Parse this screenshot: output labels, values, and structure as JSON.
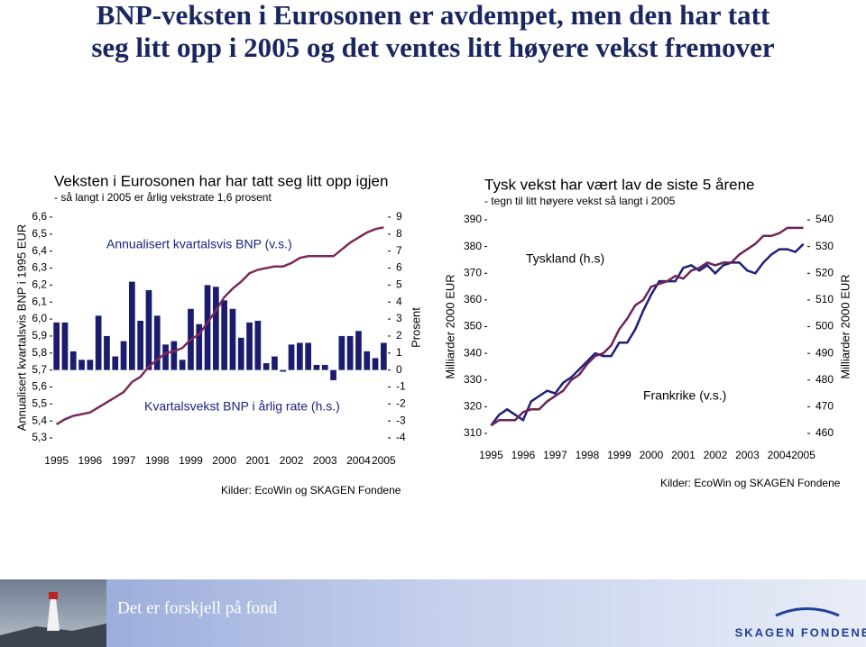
{
  "title": [
    "BNP-veksten i Eurosonen er avdempet, men den har tatt",
    "seg litt opp i 2005 og det ventes litt høyere vekst fremover"
  ],
  "chart_data": [
    {
      "type": "combo",
      "title": "Veksten i Eurosonen har har tatt seg litt opp igjen",
      "subtitle": "- så langt i 2005 er årlig vekstrate 1,6 prosent",
      "ylabel": "Annualisert kvartalsvis BNP i 1995 EUR",
      "y2label": "Prosent",
      "source": "Kilder: EcoWin og SKAGEN Fondene",
      "categories": [
        "1995",
        null,
        null,
        null,
        "1996",
        null,
        null,
        null,
        "1997",
        null,
        null,
        null,
        "1998",
        null,
        null,
        null,
        "1999",
        null,
        null,
        null,
        "2000",
        null,
        null,
        null,
        "2001",
        null,
        null,
        null,
        "2002",
        null,
        null,
        null,
        "2003",
        null,
        null,
        null,
        "2004",
        null,
        null,
        "2005"
      ],
      "series": [
        {
          "name": "Annualisert kvartalsvis BNP (v.s.)",
          "type": "line",
          "axis": "y",
          "color": "#7b2a5a",
          "values": [
            5.38,
            5.41,
            5.43,
            5.44,
            5.45,
            5.48,
            5.51,
            5.54,
            5.57,
            5.63,
            5.66,
            5.72,
            5.76,
            5.8,
            5.81,
            5.83,
            5.88,
            5.91,
            5.98,
            6.05,
            6.13,
            6.18,
            6.22,
            6.27,
            6.29,
            6.3,
            6.31,
            6.31,
            6.33,
            6.36,
            6.37,
            6.37,
            6.37,
            6.37,
            6.41,
            6.45,
            6.48,
            6.51,
            6.53,
            6.54
          ]
        },
        {
          "name": "Kvartalsvekst BNP i årlig rate (h.s.)",
          "type": "bar",
          "axis": "y2",
          "color": "#1c1c6e",
          "values": [
            2.8,
            2.8,
            1.1,
            0.6,
            0.6,
            3.2,
            2.0,
            0.8,
            1.7,
            5.2,
            2.9,
            4.7,
            3.2,
            1.5,
            1.7,
            0.6,
            3.6,
            2.7,
            5.0,
            4.9,
            4.1,
            3.6,
            1.9,
            2.8,
            2.9,
            0.4,
            0.8,
            -0.1,
            1.5,
            1.6,
            1.6,
            0.3,
            0.3,
            -0.6,
            2.0,
            2.0,
            2.3,
            1.1,
            0.7,
            1.6
          ]
        }
      ],
      "ylim": [
        5.3,
        6.6
      ],
      "yticks": [
        {
          "value": 5.3,
          "label": "5,3"
        },
        {
          "value": 5.4,
          "label": "5,4"
        },
        {
          "value": 5.5,
          "label": "5,5"
        },
        {
          "value": 5.6,
          "label": "5,6"
        },
        {
          "value": 5.7,
          "label": "5,7"
        },
        {
          "value": 5.8,
          "label": "5,8"
        },
        {
          "value": 5.9,
          "label": "5,9"
        },
        {
          "value": 6.0,
          "label": "6,0"
        },
        {
          "value": 6.1,
          "label": "6,1"
        },
        {
          "value": 6.2,
          "label": "6,2"
        },
        {
          "value": 6.3,
          "label": "6,3"
        },
        {
          "value": 6.4,
          "label": "6,4"
        },
        {
          "value": 6.5,
          "label": "6,5"
        },
        {
          "value": 6.6,
          "label": "6,6"
        }
      ],
      "y2lim": [
        -4,
        9
      ],
      "y2ticks": [
        -4,
        -3,
        -2,
        -1,
        0,
        1,
        2,
        3,
        4,
        5,
        6,
        7,
        8,
        9
      ]
    },
    {
      "type": "line",
      "title": "Tysk vekst har vært lav de siste 5 årene",
      "subtitle": "- tegn til litt høyere vekst så langt i 2005",
      "ylabel": "Milliarder 2000 EUR",
      "y2label": "Milliarder 2000 EUR",
      "source": "Kilder: EcoWin og SKAGEN Fondene",
      "categories": [
        "1995",
        null,
        null,
        null,
        "1996",
        null,
        null,
        null,
        "1997",
        null,
        null,
        null,
        "1998",
        null,
        null,
        null,
        "1999",
        null,
        null,
        null,
        "2000",
        null,
        null,
        null,
        "2001",
        null,
        null,
        null,
        "2002",
        null,
        null,
        null,
        "2003",
        null,
        null,
        null,
        "2004",
        null,
        null,
        "2005"
      ],
      "series": [
        {
          "name": "Tyskland (h.s)",
          "axis": "y2",
          "color": "#1f1f7a",
          "values": [
            463,
            467,
            469,
            467,
            465,
            472,
            474,
            476,
            475,
            479,
            481,
            484,
            487,
            490,
            489,
            489,
            494,
            494,
            499,
            506,
            512,
            517,
            517,
            517,
            522,
            523,
            521,
            523,
            520,
            523,
            524,
            524,
            521,
            520,
            524,
            527,
            529,
            529,
            528,
            531
          ]
        },
        {
          "name": "Frankrike (v.s.)",
          "axis": "y",
          "color": "#6b2456",
          "values": [
            313,
            315,
            315,
            315,
            318,
            319,
            319,
            322,
            324,
            326,
            330,
            332,
            336,
            339,
            340,
            343,
            349,
            353,
            358,
            360,
            365,
            366,
            367,
            369,
            368,
            371,
            372,
            374,
            373,
            374,
            374,
            377,
            379,
            381,
            384,
            384,
            385,
            387,
            387,
            387
          ]
        }
      ],
      "ylim": [
        310,
        390
      ],
      "yticks": [
        310,
        320,
        330,
        340,
        350,
        360,
        370,
        380,
        390
      ],
      "y2lim": [
        460,
        540
      ],
      "y2ticks": [
        460,
        470,
        480,
        490,
        500,
        510,
        520,
        530,
        540
      ]
    }
  ],
  "footer": {
    "slogan": "Det er forskjell på fond",
    "logo": "SKAGEN FONDENE"
  }
}
